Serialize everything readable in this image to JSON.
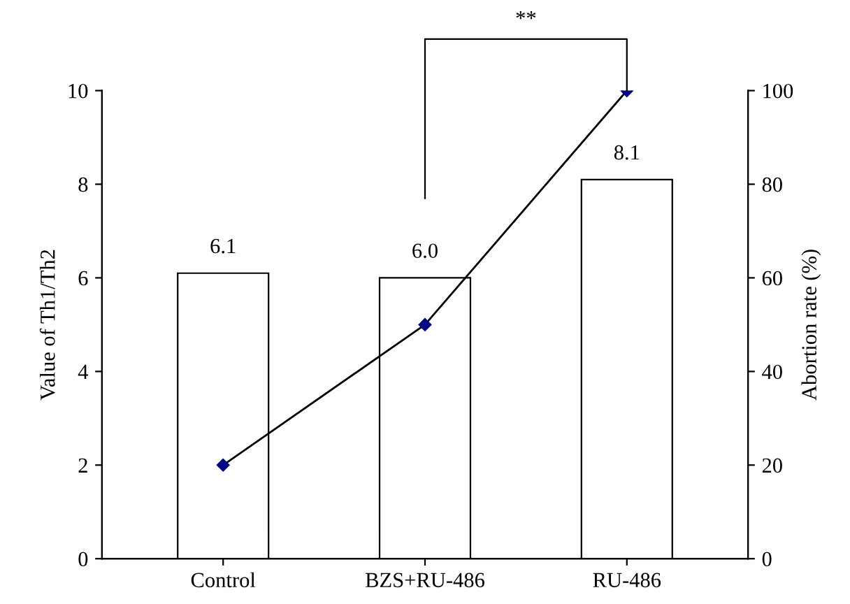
{
  "chart_data": {
    "type": "bar",
    "categories": [
      "Control",
      "BZS+RU-486",
      "RU-486"
    ],
    "ylabel": "Value of Th1/Th2",
    "y2label": "Abortion rate (%)",
    "ylim": [
      0,
      10
    ],
    "yticks": [
      0,
      2,
      4,
      6,
      8,
      10
    ],
    "y2lim": [
      0,
      100
    ],
    "y2ticks": [
      0,
      20,
      40,
      60,
      80,
      100
    ],
    "series": [
      {
        "color": "#ffffff",
        "values": [
          6.1,
          6.0,
          8.1
        ],
        "value_labels": [
          "6.1",
          "6.0",
          "8.1"
        ]
      },
      {
        "type": "line",
        "axis": "y2",
        "color": "#000080",
        "marker": "diamond",
        "line_style": "solid",
        "values": [
          20,
          50,
          100
        ]
      }
    ],
    "annotations": [
      "**"
    ],
    "grid": false
  }
}
